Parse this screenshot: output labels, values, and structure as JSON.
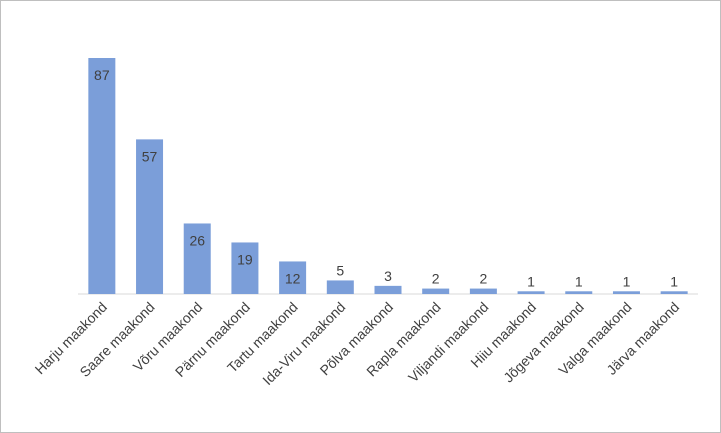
{
  "chart_data": {
    "type": "bar",
    "categories": [
      "Harju maakond",
      "Saare maakond",
      "Võru maakond",
      "Pärnu maakond",
      "Tartu maakond",
      "Ida-Viru maakond",
      "Põlva maakond",
      "Rapla maakond",
      "Viljandi maakond",
      "Hiiu maakond",
      "Jõgeva maakond",
      "Valga maakond",
      "Järva maakond"
    ],
    "values": [
      87,
      57,
      26,
      19,
      12,
      5,
      3,
      2,
      2,
      1,
      1,
      1,
      1
    ],
    "color": "#7b9ed9"
  }
}
